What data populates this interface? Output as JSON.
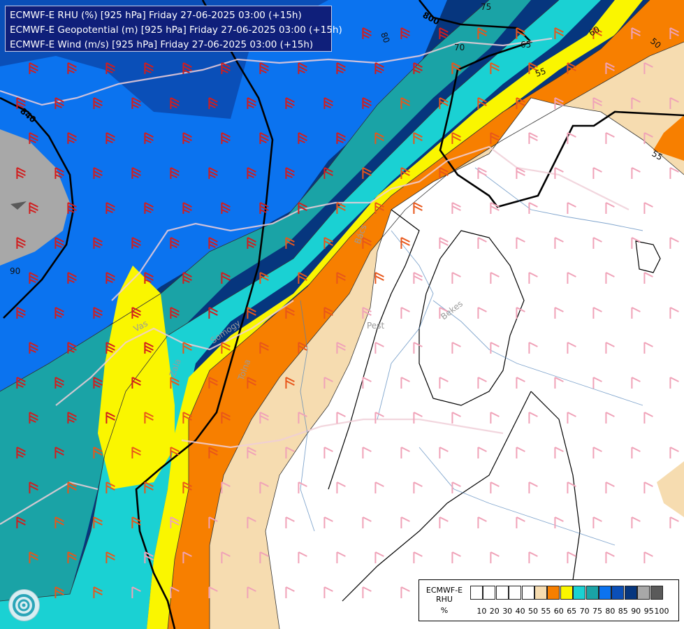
{
  "title_lines": [
    "ECMWF-E RHU (%) [925 hPa] Friday 27-06-2025 03:00 (+15h)",
    "ECMWF-E Geopotential (m) [925 hPa] Friday 27-06-2025 03:00 (+15h)",
    "ECMWF-E Wind (m/s) [925 hPa] Friday 27-06-2025 03:00 (+15h)"
  ],
  "legend": {
    "name_lines": [
      "ECMWF-E",
      "RHU",
      "%"
    ],
    "swatch_colors": [
      "#ffffff",
      "#ffffff",
      "#ffffff",
      "#ffffff",
      "#ffffff",
      "#f6dcb0",
      "#f77f00",
      "#faf600",
      "#1ad1d3",
      "#1aa3a6",
      "#0b73ef",
      "#0a4fb8",
      "#06367e",
      "#a8a8a8",
      "#5a5a5a"
    ],
    "ticks": [
      "10",
      "20",
      "30",
      "40",
      "50",
      "55",
      "60",
      "65",
      "70",
      "75",
      "80",
      "85",
      "90",
      "95",
      "100"
    ]
  },
  "place_labels": [
    "Vas",
    "Zala",
    "Somogy",
    "Tolna",
    "Pest",
    "Bács",
    "Bekes"
  ],
  "contour_labels": [
    "800",
    "840",
    "80",
    "75",
    "70",
    "65",
    "60",
    "55",
    "50",
    "55",
    "90"
  ],
  "field_colors": {
    "white": "#ffffff",
    "tan": "#f6dcb0",
    "orange": "#f77f00",
    "yellow": "#faf600",
    "cyan": "#1ad1d3",
    "teal": "#1aa3a6",
    "blue": "#0b73ef",
    "mid_blue": "#0a4fb8",
    "navy": "#06367e",
    "grey": "#a8a8a8"
  },
  "icons": [
    "ecmwf-logo-icon",
    "wind-barb-icon"
  ]
}
